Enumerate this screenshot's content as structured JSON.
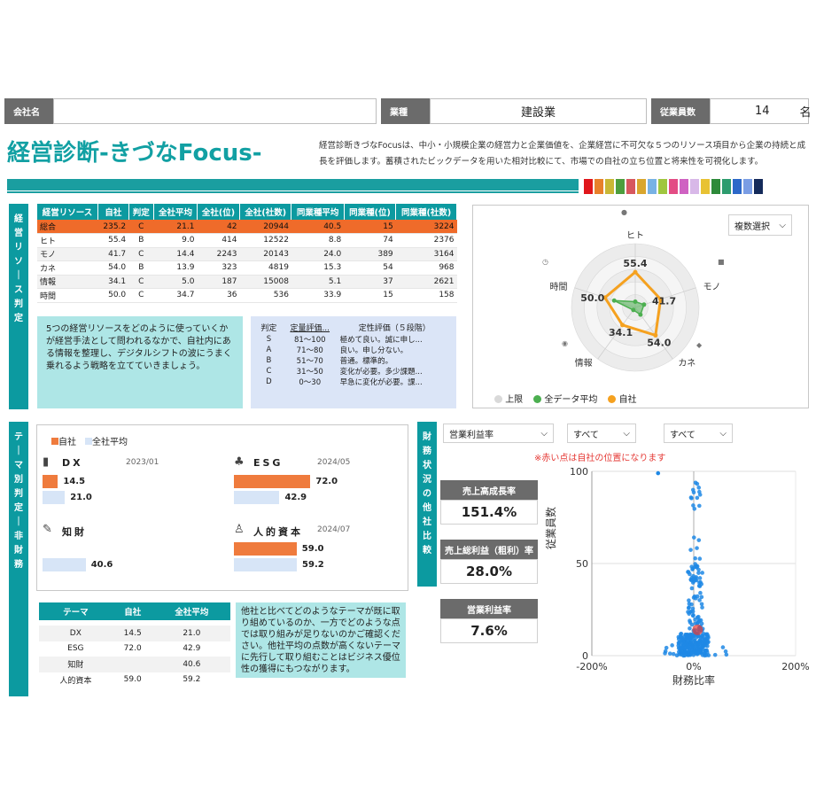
{
  "header": {
    "company_label": "会社名",
    "company_value": "",
    "industry_label": "業種",
    "industry_value": "建設業",
    "employees_label": "従業員数",
    "employees_value": "14",
    "employees_unit": "名"
  },
  "title": "経営診断-きづなFocus-",
  "description": "経営診断きづなFocusは、中小・小規模企業の経営力と企業価値を、企業経営に不可欠な５つのリソース項目から企業の持続と成長を評価します。蓄積されたビックデータを用いた相対比較にて、市場での自社の立ち位置と将来性を可視化します。",
  "palette_colors": [
    "#e0161b",
    "#e8802a",
    "#c9b735",
    "#4c9e3d",
    "#d7575e",
    "#d9a62e",
    "#78b2e4",
    "#a0c63f",
    "#e34c84",
    "#cf62c2",
    "#d8b8e8",
    "#e8c233",
    "#2e8a3a",
    "#2d9c6e",
    "#2c68c9",
    "#7a9de4",
    "#142a5a"
  ],
  "resource_section": {
    "side_label": "経営リソース判定",
    "columns": [
      "経営リソース",
      "自社",
      "判定",
      "全社平均",
      "全社(位)",
      "全社(社数)",
      "同業種平均",
      "同業種(位)",
      "同業種(社数)"
    ],
    "rows": [
      [
        "総合",
        "235.2",
        "C",
        "21.1",
        "42",
        "20944",
        "40.5",
        "15",
        "3224"
      ],
      [
        "ヒト",
        "55.4",
        "B",
        "9.0",
        "414",
        "12522",
        "8.8",
        "74",
        "2376"
      ],
      [
        "モノ",
        "41.7",
        "C",
        "14.4",
        "2243",
        "20143",
        "24.0",
        "389",
        "3164"
      ],
      [
        "カネ",
        "54.0",
        "B",
        "13.9",
        "323",
        "4819",
        "15.3",
        "54",
        "968"
      ],
      [
        "情報",
        "34.1",
        "C",
        "5.0",
        "187",
        "15008",
        "5.1",
        "37",
        "2621"
      ],
      [
        "時間",
        "50.0",
        "C",
        "34.7",
        "36",
        "536",
        "33.9",
        "15",
        "158"
      ]
    ],
    "note": "5つの経営リソースをどのように使っていくかが経営手法として問われるなかで、自社内にある情報を整理し、デジタルシフトの波にうまく乗れるよう戦略を立てていきましょう。",
    "grade_table": {
      "columns": [
        "判定",
        "定量評価...",
        "定性評価（５段階）"
      ],
      "rows": [
        [
          "S",
          "81～100",
          "極めて良い。誠に申し..."
        ],
        [
          "A",
          "71～80",
          "良い。申し分ない。"
        ],
        [
          "B",
          "51～70",
          "普通。標準的。"
        ],
        [
          "C",
          "31～50",
          "変化が必要。多少課題..."
        ],
        [
          "D",
          "0～30",
          "早急に変化が必要。課..."
        ]
      ]
    }
  },
  "radar": {
    "select_label": "複数選択",
    "axes": [
      "ヒト",
      "モノ",
      "カネ",
      "情報",
      "時間"
    ],
    "legend": [
      "上限",
      "全データ平均",
      "自社"
    ],
    "colors": {
      "limit": "#d9d9d9",
      "avg": "#4caf50",
      "own": "#f5a11f"
    },
    "chart_data": {
      "type": "radar",
      "categories": [
        "ヒト",
        "モノ",
        "カネ",
        "情報",
        "時間"
      ],
      "series": [
        {
          "name": "上限",
          "values": [
            100,
            100,
            100,
            100,
            100
          ]
        },
        {
          "name": "全データ平均",
          "values": [
            9.0,
            14.4,
            13.9,
            5.0,
            34.7
          ]
        },
        {
          "name": "自社",
          "values": [
            55.4,
            41.7,
            54.0,
            34.1,
            50.0
          ]
        }
      ],
      "ylim": [
        0,
        100
      ]
    },
    "value_labels": [
      "55.4",
      "41.7",
      "54.0",
      "34.1",
      "50.0"
    ]
  },
  "theme_section": {
    "side_label": "テーマ別判定ー非財務",
    "legend": [
      "自社",
      "全社平均"
    ],
    "items": [
      {
        "name": "DX",
        "date": "2023/01",
        "own": 14.5,
        "avg": 21.0,
        "own_label": "14.5",
        "avg_label": "21.0"
      },
      {
        "name": "ESG",
        "date": "2024/05",
        "own": 72.0,
        "avg": 42.9,
        "own_label": "72.0",
        "avg_label": "42.9"
      },
      {
        "name": "知財",
        "date": "",
        "own": null,
        "avg": 40.6,
        "own_label": "",
        "avg_label": "40.6"
      },
      {
        "name": "人的資本",
        "date": "2024/07",
        "own": 59.0,
        "avg": 59.2,
        "own_label": "59.0",
        "avg_label": "59.2"
      }
    ],
    "table": {
      "columns": [
        "テーマ",
        "自社",
        "全社平均"
      ],
      "rows": [
        [
          "DX",
          "14.5",
          "21.0"
        ],
        [
          "ESG",
          "72.0",
          "42.9"
        ],
        [
          "知財",
          "",
          "40.6"
        ],
        [
          "人的資本",
          "59.0",
          "59.2"
        ]
      ]
    },
    "note": "他社と比べてどのようなテーマが既に取り組めているのか、一方でどのような点では取り組みが足りないのかご確認ください。他社平均の点数が高くないテーマに先行して取り組むことはビジネス優位性の獲得にもつながります。"
  },
  "finance_section": {
    "side_label": "財務状況の他社比較",
    "dropdowns": [
      "営業利益率",
      "すべて",
      "すべて"
    ],
    "kpis": [
      {
        "label": "売上高成長率",
        "value": "151.4%"
      },
      {
        "label": "売上総利益（粗利）率",
        "value": "28.0%"
      },
      {
        "label": "営業利益率",
        "value": "7.6%"
      }
    ],
    "red_note": "※赤い点は自社の位置になります",
    "chart_data": {
      "type": "scatter",
      "xlabel": "財務比率",
      "ylabel": "従業員数",
      "xlim": [
        -200,
        200
      ],
      "ylim": [
        0,
        100
      ],
      "x_ticks": [
        "-200%",
        "0%",
        "200%"
      ],
      "y_ticks": [
        "0",
        "50",
        "100"
      ],
      "own_point": {
        "x": 7.6,
        "y": 14
      }
    }
  }
}
